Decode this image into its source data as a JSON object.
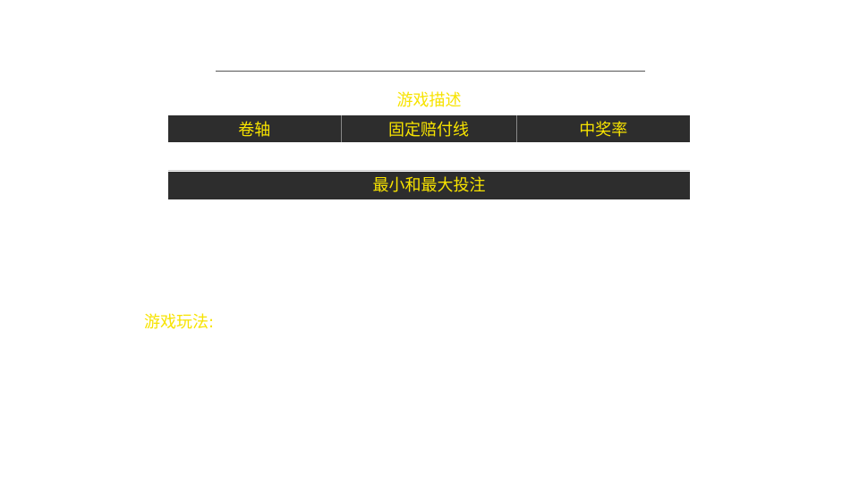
{
  "colors": {
    "accent_text": "#f7e300",
    "header_background": "#2d2d2d",
    "page_background": "#ffffff",
    "divider": "#555555"
  },
  "description": {
    "title": "游戏描述",
    "columns": [
      "卷轴",
      "固定赔付线",
      "中奖率"
    ],
    "values": [
      "",
      "",
      ""
    ]
  },
  "bets": {
    "title": "最小和最大投注"
  },
  "gameplay": {
    "label": "游戏玩法:"
  }
}
